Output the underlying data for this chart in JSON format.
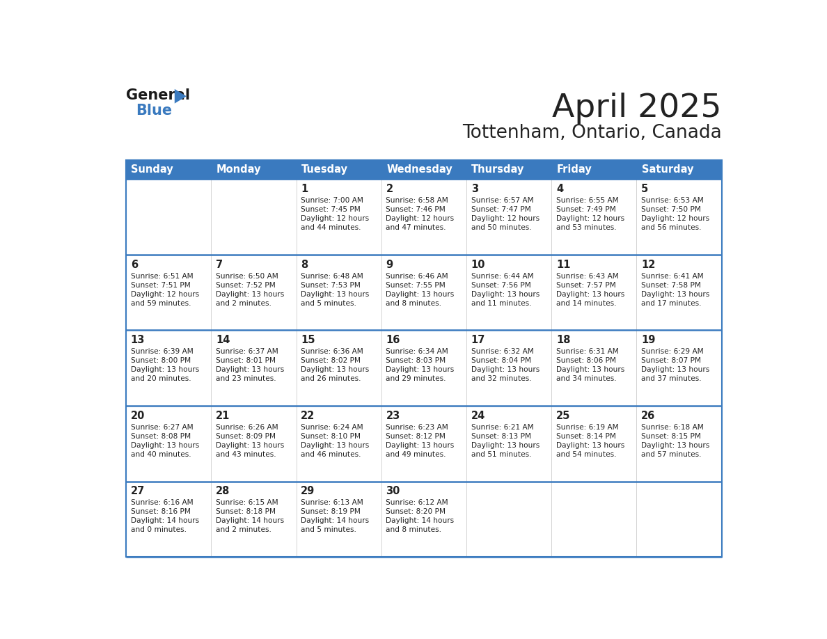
{
  "title": "April 2025",
  "subtitle": "Tottenham, Ontario, Canada",
  "header_bg_color": "#3a7abf",
  "header_text_color": "#ffffff",
  "cell_bg_color": "#ffffff",
  "border_color": "#3a7abf",
  "row_border_color": "#3a7abf",
  "text_color": "#222222",
  "days_of_week": [
    "Sunday",
    "Monday",
    "Tuesday",
    "Wednesday",
    "Thursday",
    "Friday",
    "Saturday"
  ],
  "calendar_data": [
    [
      {
        "day": null,
        "sunrise": null,
        "sunset": null,
        "daylight": null
      },
      {
        "day": null,
        "sunrise": null,
        "sunset": null,
        "daylight": null
      },
      {
        "day": 1,
        "sunrise": "Sunrise: 7:00 AM",
        "sunset": "Sunset: 7:45 PM",
        "daylight": "Daylight: 12 hours\nand 44 minutes."
      },
      {
        "day": 2,
        "sunrise": "Sunrise: 6:58 AM",
        "sunset": "Sunset: 7:46 PM",
        "daylight": "Daylight: 12 hours\nand 47 minutes."
      },
      {
        "day": 3,
        "sunrise": "Sunrise: 6:57 AM",
        "sunset": "Sunset: 7:47 PM",
        "daylight": "Daylight: 12 hours\nand 50 minutes."
      },
      {
        "day": 4,
        "sunrise": "Sunrise: 6:55 AM",
        "sunset": "Sunset: 7:49 PM",
        "daylight": "Daylight: 12 hours\nand 53 minutes."
      },
      {
        "day": 5,
        "sunrise": "Sunrise: 6:53 AM",
        "sunset": "Sunset: 7:50 PM",
        "daylight": "Daylight: 12 hours\nand 56 minutes."
      }
    ],
    [
      {
        "day": 6,
        "sunrise": "Sunrise: 6:51 AM",
        "sunset": "Sunset: 7:51 PM",
        "daylight": "Daylight: 12 hours\nand 59 minutes."
      },
      {
        "day": 7,
        "sunrise": "Sunrise: 6:50 AM",
        "sunset": "Sunset: 7:52 PM",
        "daylight": "Daylight: 13 hours\nand 2 minutes."
      },
      {
        "day": 8,
        "sunrise": "Sunrise: 6:48 AM",
        "sunset": "Sunset: 7:53 PM",
        "daylight": "Daylight: 13 hours\nand 5 minutes."
      },
      {
        "day": 9,
        "sunrise": "Sunrise: 6:46 AM",
        "sunset": "Sunset: 7:55 PM",
        "daylight": "Daylight: 13 hours\nand 8 minutes."
      },
      {
        "day": 10,
        "sunrise": "Sunrise: 6:44 AM",
        "sunset": "Sunset: 7:56 PM",
        "daylight": "Daylight: 13 hours\nand 11 minutes."
      },
      {
        "day": 11,
        "sunrise": "Sunrise: 6:43 AM",
        "sunset": "Sunset: 7:57 PM",
        "daylight": "Daylight: 13 hours\nand 14 minutes."
      },
      {
        "day": 12,
        "sunrise": "Sunrise: 6:41 AM",
        "sunset": "Sunset: 7:58 PM",
        "daylight": "Daylight: 13 hours\nand 17 minutes."
      }
    ],
    [
      {
        "day": 13,
        "sunrise": "Sunrise: 6:39 AM",
        "sunset": "Sunset: 8:00 PM",
        "daylight": "Daylight: 13 hours\nand 20 minutes."
      },
      {
        "day": 14,
        "sunrise": "Sunrise: 6:37 AM",
        "sunset": "Sunset: 8:01 PM",
        "daylight": "Daylight: 13 hours\nand 23 minutes."
      },
      {
        "day": 15,
        "sunrise": "Sunrise: 6:36 AM",
        "sunset": "Sunset: 8:02 PM",
        "daylight": "Daylight: 13 hours\nand 26 minutes."
      },
      {
        "day": 16,
        "sunrise": "Sunrise: 6:34 AM",
        "sunset": "Sunset: 8:03 PM",
        "daylight": "Daylight: 13 hours\nand 29 minutes."
      },
      {
        "day": 17,
        "sunrise": "Sunrise: 6:32 AM",
        "sunset": "Sunset: 8:04 PM",
        "daylight": "Daylight: 13 hours\nand 32 minutes."
      },
      {
        "day": 18,
        "sunrise": "Sunrise: 6:31 AM",
        "sunset": "Sunset: 8:06 PM",
        "daylight": "Daylight: 13 hours\nand 34 minutes."
      },
      {
        "day": 19,
        "sunrise": "Sunrise: 6:29 AM",
        "sunset": "Sunset: 8:07 PM",
        "daylight": "Daylight: 13 hours\nand 37 minutes."
      }
    ],
    [
      {
        "day": 20,
        "sunrise": "Sunrise: 6:27 AM",
        "sunset": "Sunset: 8:08 PM",
        "daylight": "Daylight: 13 hours\nand 40 minutes."
      },
      {
        "day": 21,
        "sunrise": "Sunrise: 6:26 AM",
        "sunset": "Sunset: 8:09 PM",
        "daylight": "Daylight: 13 hours\nand 43 minutes."
      },
      {
        "day": 22,
        "sunrise": "Sunrise: 6:24 AM",
        "sunset": "Sunset: 8:10 PM",
        "daylight": "Daylight: 13 hours\nand 46 minutes."
      },
      {
        "day": 23,
        "sunrise": "Sunrise: 6:23 AM",
        "sunset": "Sunset: 8:12 PM",
        "daylight": "Daylight: 13 hours\nand 49 minutes."
      },
      {
        "day": 24,
        "sunrise": "Sunrise: 6:21 AM",
        "sunset": "Sunset: 8:13 PM",
        "daylight": "Daylight: 13 hours\nand 51 minutes."
      },
      {
        "day": 25,
        "sunrise": "Sunrise: 6:19 AM",
        "sunset": "Sunset: 8:14 PM",
        "daylight": "Daylight: 13 hours\nand 54 minutes."
      },
      {
        "day": 26,
        "sunrise": "Sunrise: 6:18 AM",
        "sunset": "Sunset: 8:15 PM",
        "daylight": "Daylight: 13 hours\nand 57 minutes."
      }
    ],
    [
      {
        "day": 27,
        "sunrise": "Sunrise: 6:16 AM",
        "sunset": "Sunset: 8:16 PM",
        "daylight": "Daylight: 14 hours\nand 0 minutes."
      },
      {
        "day": 28,
        "sunrise": "Sunrise: 6:15 AM",
        "sunset": "Sunset: 8:18 PM",
        "daylight": "Daylight: 14 hours\nand 2 minutes."
      },
      {
        "day": 29,
        "sunrise": "Sunrise: 6:13 AM",
        "sunset": "Sunset: 8:19 PM",
        "daylight": "Daylight: 14 hours\nand 5 minutes."
      },
      {
        "day": 30,
        "sunrise": "Sunrise: 6:12 AM",
        "sunset": "Sunset: 8:20 PM",
        "daylight": "Daylight: 14 hours\nand 8 minutes."
      },
      {
        "day": null,
        "sunrise": null,
        "sunset": null,
        "daylight": null
      },
      {
        "day": null,
        "sunrise": null,
        "sunset": null,
        "daylight": null
      },
      {
        "day": null,
        "sunrise": null,
        "sunset": null,
        "daylight": null
      }
    ]
  ],
  "logo_text_general": "General",
  "logo_text_blue": "Blue",
  "logo_triangle_color": "#3a7abf",
  "logo_general_color": "#1a1a1a"
}
